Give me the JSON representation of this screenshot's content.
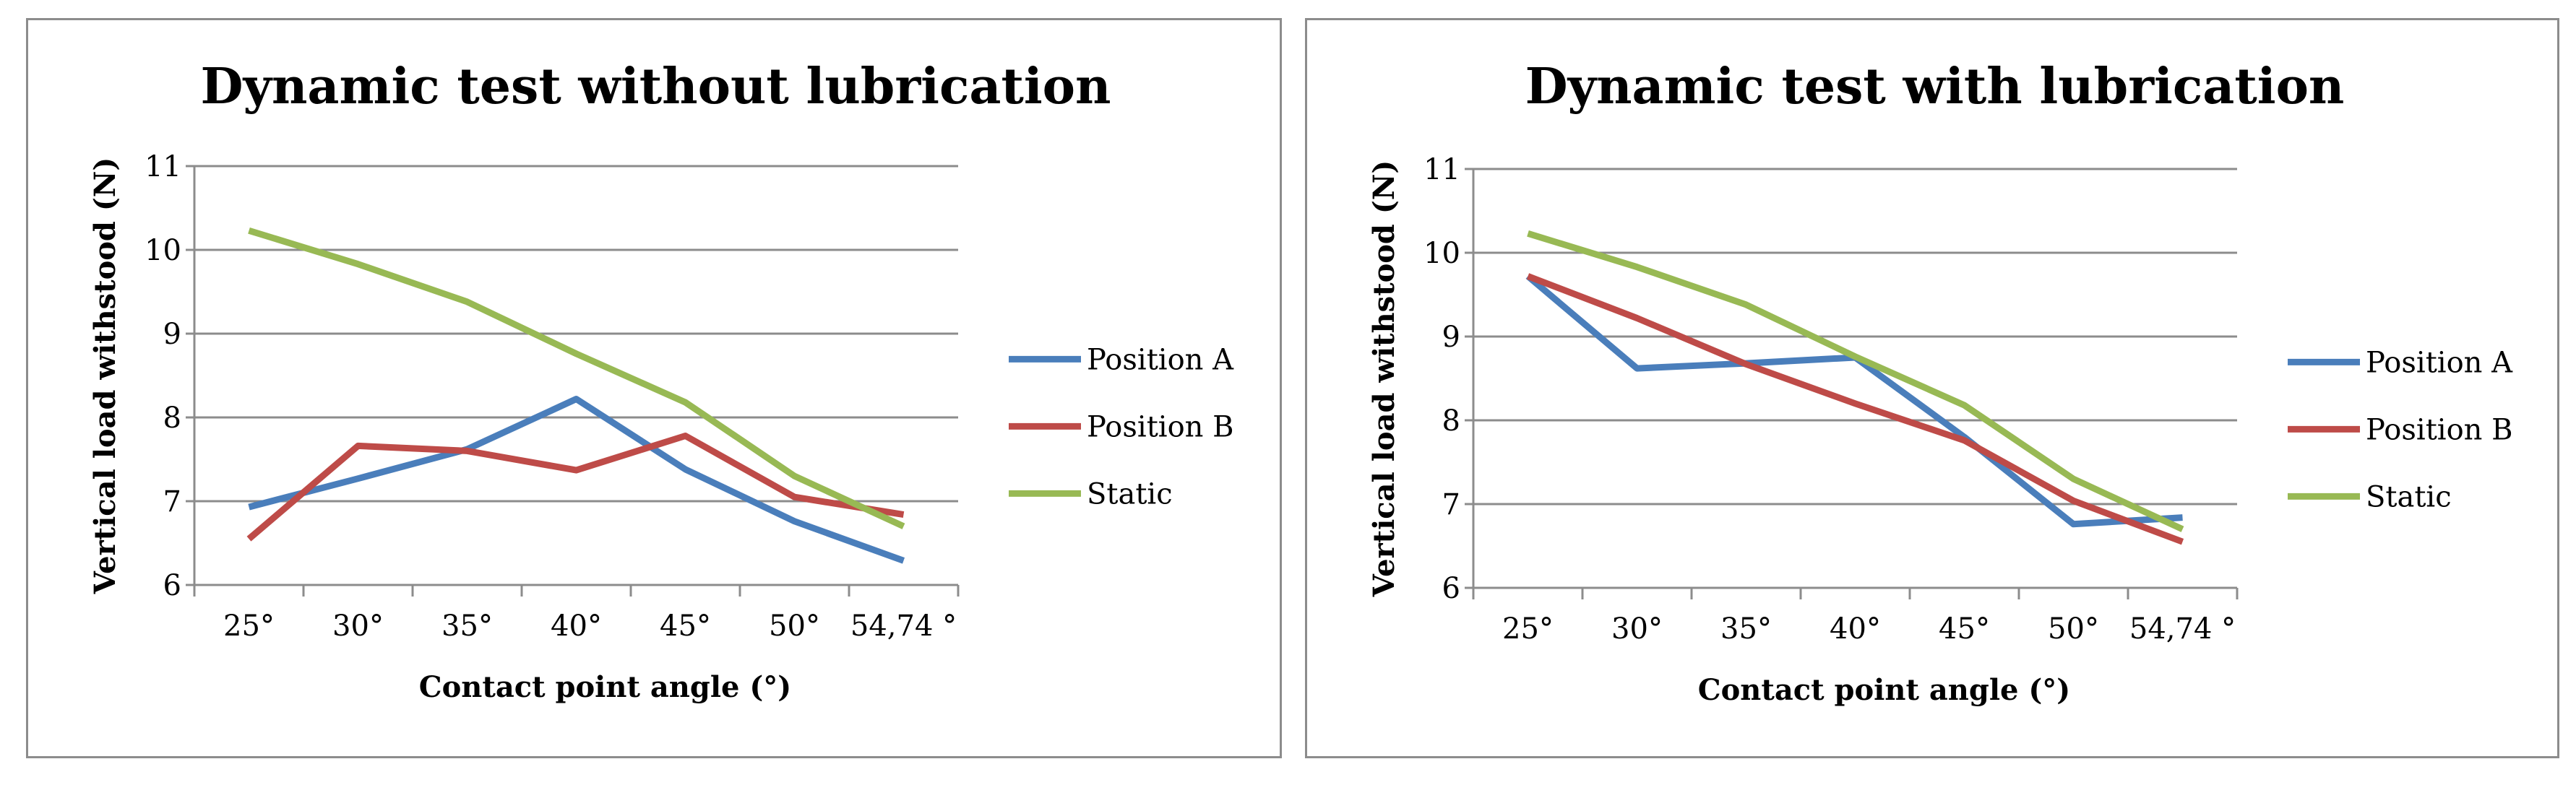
{
  "chart_data": [
    {
      "type": "line",
      "title": "Dynamic test without lubrication",
      "xlabel": "Contact point angle (°)",
      "ylabel": "Vertical load withstood  (N)",
      "categories": [
        "25°",
        "30°",
        "35°",
        "40°",
        "45°",
        "50°",
        "54,74 °"
      ],
      "ylim": [
        6,
        11
      ],
      "yticks": [
        6,
        7,
        8,
        9,
        10,
        11
      ],
      "grid": true,
      "legend": "right",
      "series": [
        {
          "name": "Position A",
          "color": "#4a7ebb",
          "values": [
            6.93,
            7.27,
            7.62,
            8.22,
            7.38,
            6.76,
            6.29
          ]
        },
        {
          "name": "Position B",
          "color": "#be4b48",
          "values": [
            6.55,
            7.66,
            7.6,
            7.37,
            7.78,
            7.05,
            6.84
          ]
        },
        {
          "name": "Static",
          "color": "#98b954",
          "values": [
            10.23,
            9.83,
            9.38,
            8.76,
            8.18,
            7.3,
            6.7
          ]
        }
      ]
    },
    {
      "type": "line",
      "title": "Dynamic test with lubrication",
      "xlabel": "Contact point angle (°)",
      "ylabel": "Vertical load withstood  (N)",
      "categories": [
        "25°",
        "30°",
        "35°",
        "40°",
        "45°",
        "50°",
        "54,74 °"
      ],
      "ylim": [
        6,
        11
      ],
      "yticks": [
        6,
        7,
        8,
        9,
        10,
        11
      ],
      "grid": true,
      "legend": "right",
      "series": [
        {
          "name": "Position A",
          "color": "#4a7ebb",
          "values": [
            9.72,
            8.62,
            8.68,
            8.75,
            7.8,
            6.76,
            6.84
          ]
        },
        {
          "name": "Position B",
          "color": "#be4b48",
          "values": [
            9.72,
            9.22,
            8.67,
            8.2,
            7.76,
            7.04,
            6.55
          ]
        },
        {
          "name": "Static",
          "color": "#98b954",
          "values": [
            10.23,
            9.83,
            9.38,
            8.76,
            8.18,
            7.3,
            6.7
          ]
        }
      ]
    }
  ]
}
